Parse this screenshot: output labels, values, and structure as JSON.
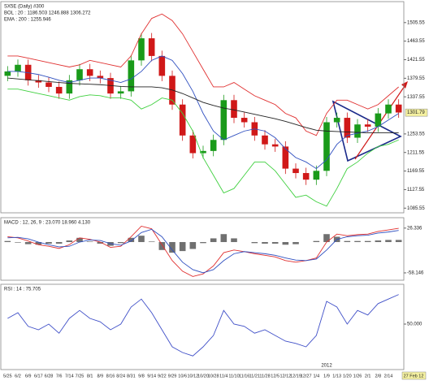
{
  "chart_data": [
    {
      "type": "candlestick",
      "legend": [
        "SX5E (Daily) #300",
        "BOL : 20 : 1186.503 1246.888 1306.272",
        "EMA : 200 : 1255.946"
      ],
      "categories": [
        "5/25",
        "6/2",
        "6/9",
        "6/17",
        "6/28",
        "7/6",
        "7/14",
        "7/25",
        "8/1",
        "8/9",
        "8/16",
        "8/24",
        "8/31",
        "9/8",
        "9/14",
        "9/22",
        "9/29",
        "10/6",
        "10/12",
        "10/20",
        "10/28",
        "11/4",
        "11/10",
        "11/16",
        "11/21",
        "11/28",
        "12/5",
        "12/12",
        "12/19",
        "12/27",
        "1/4",
        "1/9",
        "1/13",
        "1/20",
        "1/26",
        "2/1",
        "2/8",
        "2/14",
        "27 Feb 12"
      ],
      "open": [
        1385,
        1395,
        1410,
        1375,
        1370,
        1360,
        1345,
        1375,
        1400,
        1385,
        1380,
        1345,
        1350,
        1420,
        1470,
        1430,
        1385,
        1320,
        1250,
        1210,
        1215,
        1240,
        1330,
        1290,
        1280,
        1250,
        1230,
        1225,
        1175,
        1165,
        1150,
        1170,
        1280,
        1290,
        1245,
        1275,
        1270,
        1300,
        1320
      ],
      "high": [
        1407,
        1422,
        1422,
        1387,
        1382,
        1372,
        1387,
        1412,
        1412,
        1397,
        1392,
        1362,
        1432,
        1482,
        1482,
        1442,
        1397,
        1332,
        1262,
        1227,
        1252,
        1342,
        1342,
        1302,
        1292,
        1262,
        1242,
        1237,
        1187,
        1177,
        1182,
        1292,
        1302,
        1302,
        1287,
        1287,
        1312,
        1332,
        1332
      ],
      "low": [
        1373,
        1383,
        1363,
        1358,
        1348,
        1333,
        1333,
        1363,
        1373,
        1368,
        1333,
        1333,
        1338,
        1408,
        1418,
        1373,
        1308,
        1238,
        1198,
        1198,
        1203,
        1228,
        1278,
        1268,
        1238,
        1218,
        1213,
        1163,
        1153,
        1138,
        1138,
        1158,
        1268,
        1233,
        1233,
        1258,
        1258,
        1288,
        1290
      ],
      "close": [
        1395,
        1410,
        1375,
        1370,
        1360,
        1345,
        1375,
        1400,
        1385,
        1380,
        1345,
        1350,
        1420,
        1470,
        1430,
        1385,
        1320,
        1250,
        1210,
        1215,
        1240,
        1330,
        1290,
        1280,
        1250,
        1230,
        1225,
        1175,
        1165,
        1150,
        1170,
        1280,
        1290,
        1245,
        1275,
        1270,
        1300,
        1320,
        1302
      ],
      "up_color": "#1a9a1a",
      "down_color": "#d01818",
      "series": [
        {
          "color": "#e03030",
          "values": [
            1430,
            1430,
            1425,
            1420,
            1415,
            1410,
            1405,
            1410,
            1420,
            1415,
            1410,
            1405,
            1430,
            1480,
            1515,
            1525,
            1510,
            1480,
            1440,
            1400,
            1360,
            1360,
            1370,
            1355,
            1340,
            1330,
            1320,
            1300,
            1290,
            1260,
            1250,
            1300,
            1330,
            1330,
            1320,
            1310,
            1320,
            1340,
            1360
          ]
        },
        {
          "color": "#3050c0",
          "values": [
            1395,
            1395,
            1392,
            1388,
            1382,
            1375,
            1370,
            1375,
            1380,
            1380,
            1375,
            1370,
            1378,
            1395,
            1420,
            1430,
            1420,
            1390,
            1350,
            1300,
            1260,
            1240,
            1250,
            1260,
            1265,
            1260,
            1245,
            1220,
            1200,
            1190,
            1175,
            1195,
            1230,
            1250,
            1255,
            1260,
            1270,
            1285,
            1300
          ]
        },
        {
          "color": "#40d040",
          "values": [
            1355,
            1355,
            1350,
            1345,
            1340,
            1335,
            1330,
            1338,
            1342,
            1340,
            1335,
            1335,
            1330,
            1310,
            1320,
            1335,
            1330,
            1300,
            1260,
            1200,
            1160,
            1120,
            1130,
            1160,
            1190,
            1190,
            1170,
            1140,
            1110,
            1115,
            1100,
            1090,
            1130,
            1175,
            1190,
            1210,
            1225,
            1230,
            1240
          ]
        },
        {
          "color": "#222222",
          "values": [
            1380,
            1378,
            1376,
            1374,
            1372,
            1370,
            1368,
            1367,
            1366,
            1365,
            1363,
            1361,
            1360,
            1360,
            1360,
            1358,
            1353,
            1345,
            1335,
            1325,
            1318,
            1312,
            1308,
            1303,
            1298,
            1293,
            1288,
            1282,
            1275,
            1268,
            1262,
            1260,
            1259,
            1258,
            1257,
            1256,
            1256,
            1256,
            1256
          ]
        }
      ],
      "ylim": [
        1075,
        1553
      ],
      "yticks": [
        1505.55,
        1463.55,
        1421.55,
        1379.55,
        1337.55,
        1253.55,
        1211.55,
        1169.55,
        1127.55,
        1085.55
      ],
      "last_value": 1301.79
    },
    {
      "type": "bar",
      "legend": [
        "MACD : 12, 26, 9 : 23.070 18.960 4.130"
      ],
      "values": [
        2,
        -1,
        -4,
        -5,
        -3,
        -3,
        3,
        8,
        1,
        -3,
        -7,
        -2,
        8,
        12,
        1,
        -15,
        -20,
        -17,
        -13,
        -2,
        7,
        15,
        7,
        0,
        -2,
        -3,
        -3,
        -5,
        -4,
        0,
        2,
        15,
        10,
        2,
        2,
        2,
        3,
        4,
        4
      ],
      "color": "#707070",
      "series": [
        {
          "color": "#e03030",
          "values": [
            10,
            8,
            2,
            -5,
            -8,
            -12,
            -5,
            8,
            5,
            0,
            -10,
            -8,
            10,
            30,
            25,
            -5,
            -35,
            -55,
            -65,
            -60,
            -45,
            -20,
            -15,
            -18,
            -22,
            -25,
            -28,
            -35,
            -38,
            -35,
            -30,
            0,
            15,
            12,
            14,
            15,
            20,
            23,
            26
          ]
        },
        {
          "color": "#3050c0",
          "values": [
            8,
            9,
            6,
            0,
            -5,
            -9,
            -8,
            0,
            4,
            3,
            -3,
            -6,
            2,
            18,
            24,
            10,
            -15,
            -38,
            -52,
            -58,
            -52,
            -35,
            -22,
            -18,
            -20,
            -22,
            -25,
            -30,
            -34,
            -35,
            -32,
            -15,
            5,
            10,
            12,
            13,
            17,
            19,
            22
          ]
        }
      ],
      "ylim": [
        -72,
        46
      ],
      "yticks": [
        26.336,
        -58.146
      ]
    },
    {
      "type": "line",
      "legend": [
        "RSI : 14 : 75.705"
      ],
      "series": [
        {
          "color": "#4050c8",
          "values": [
            55,
            60,
            48,
            45,
            50,
            42,
            55,
            62,
            55,
            52,
            45,
            50,
            65,
            72,
            60,
            45,
            30,
            25,
            22,
            30,
            40,
            62,
            50,
            48,
            42,
            45,
            40,
            35,
            33,
            30,
            40,
            70,
            65,
            50,
            62,
            58,
            68,
            72,
            76
          ]
        }
      ],
      "ylim": [
        10,
        85
      ],
      "yticks": [
        {
          "value": 50,
          "label": "50.000"
        }
      ],
      "annotations": [
        "2012"
      ]
    }
  ]
}
